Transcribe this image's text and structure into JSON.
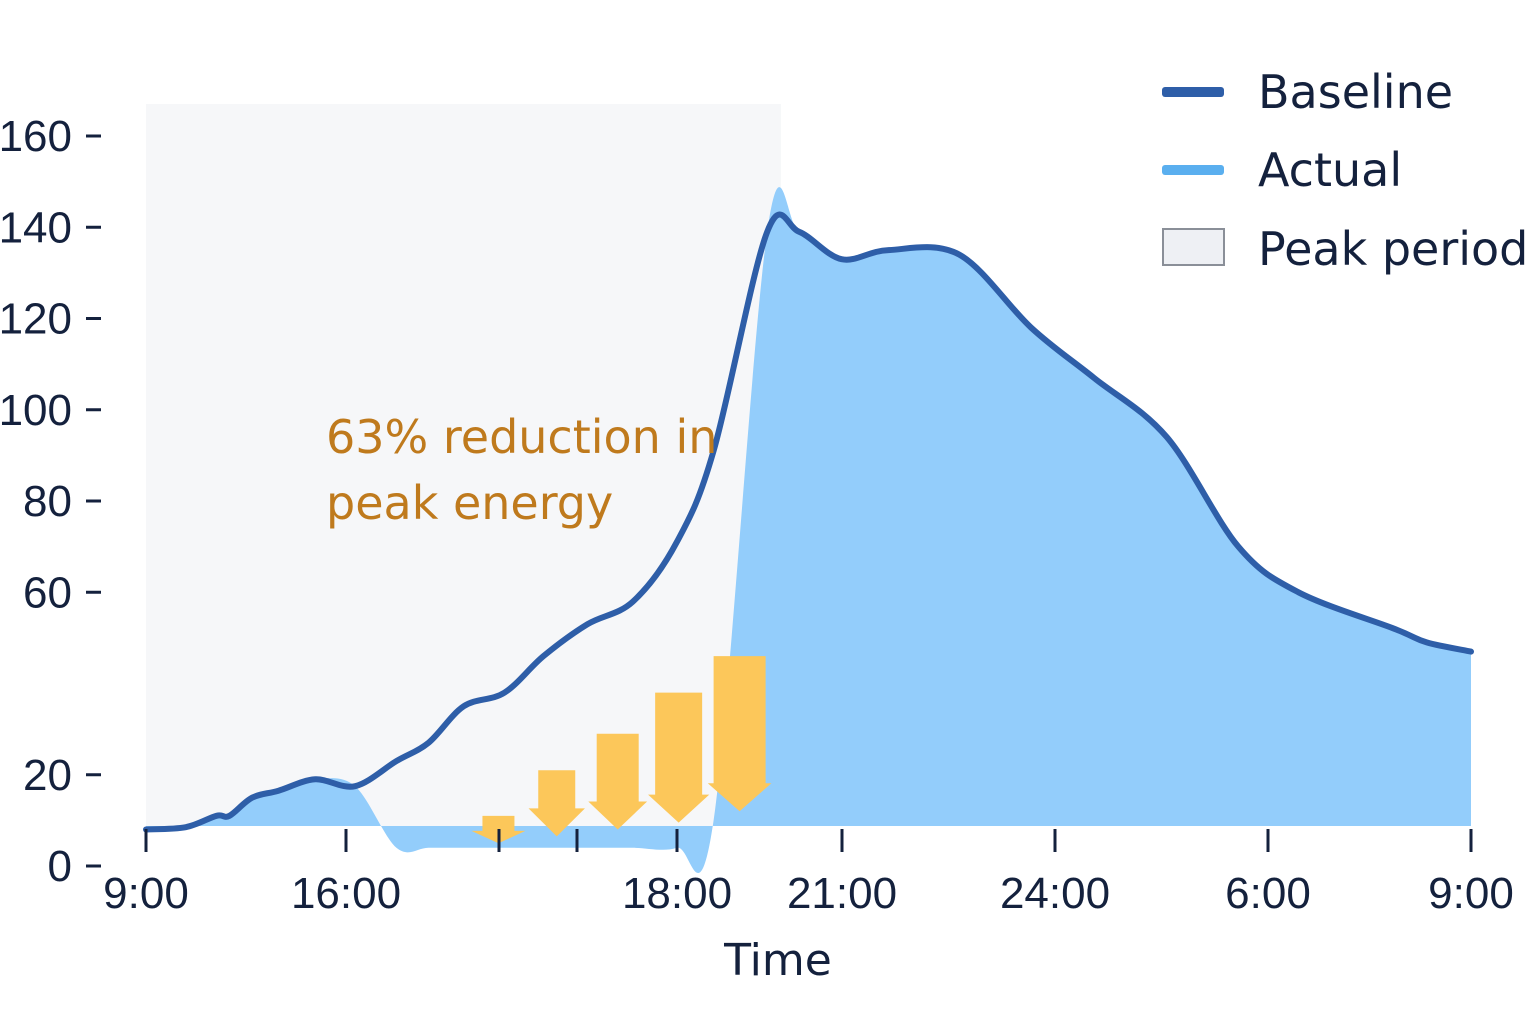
{
  "chart_data": {
    "type": "area",
    "title": "",
    "xlabel": "Time",
    "ylabel": "",
    "ylim": [
      0,
      160
    ],
    "y_ticks": [
      0,
      20,
      60,
      80,
      100,
      120,
      140,
      160
    ],
    "y_tick_labels": [
      "0",
      "20",
      "60",
      "80",
      "100",
      "120",
      "140",
      "160"
    ],
    "x_tick_labels": [
      "9:00",
      "16:00",
      "",
      "",
      "18:00",
      "21:00",
      "24:00",
      "6:00",
      "9:00"
    ],
    "x_positions": [
      0,
      15,
      26.6,
      31.5,
      40.1,
      50,
      63.9,
      78.9,
      94.5,
      106.6,
      119.9,
      135.3,
      150,
      166.6,
      183.8,
      200.3,
      214.2,
      234.4,
      246.5,
      262.5,
      280.2,
      306.9,
      334,
      357.7,
      385.2,
      412.2,
      434.9,
      471.1,
      483.3,
      500
    ],
    "series": [
      {
        "name": "Baseline",
        "color": "#2e5ea8",
        "values": [
          8,
          8.5,
          11,
          11,
          15,
          16.5,
          19,
          17.5,
          23,
          27,
          35,
          38,
          46,
          53,
          58,
          71,
          91,
          139,
          139,
          133,
          135,
          134,
          118,
          107,
          94,
          70,
          60,
          52,
          49,
          47
        ]
      },
      {
        "name": "Actual",
        "color": "#93cdfb",
        "values": [
          8,
          8.5,
          11,
          11,
          15,
          16.5,
          19,
          17.5,
          4,
          4,
          4,
          4,
          4,
          4,
          4,
          4,
          10,
          139,
          139,
          133,
          135,
          134,
          118,
          107,
          94,
          70,
          60,
          52,
          49,
          47
        ]
      }
    ],
    "peak_period": {
      "start": 0,
      "end": 239.6
    },
    "legend": [
      {
        "name": "Baseline",
        "color": "#2e5ea8"
      },
      {
        "name": "Actual",
        "color": "#5aafef"
      },
      {
        "name": "Peak period",
        "color": "#eef0f4"
      }
    ],
    "legend_position": "top-right",
    "annotation": {
      "lines": [
        "63% reduction in",
        "peak energy"
      ],
      "color": "#bf7a1d"
    },
    "reduction_arrows": {
      "color": "#fcc75a",
      "positions": [
        133,
        155,
        178,
        201,
        224
      ],
      "from_values": [
        11,
        21,
        29,
        38,
        46
      ],
      "to_values": [
        5,
        6.5,
        8,
        9.5,
        12
      ]
    },
    "grid": false
  }
}
